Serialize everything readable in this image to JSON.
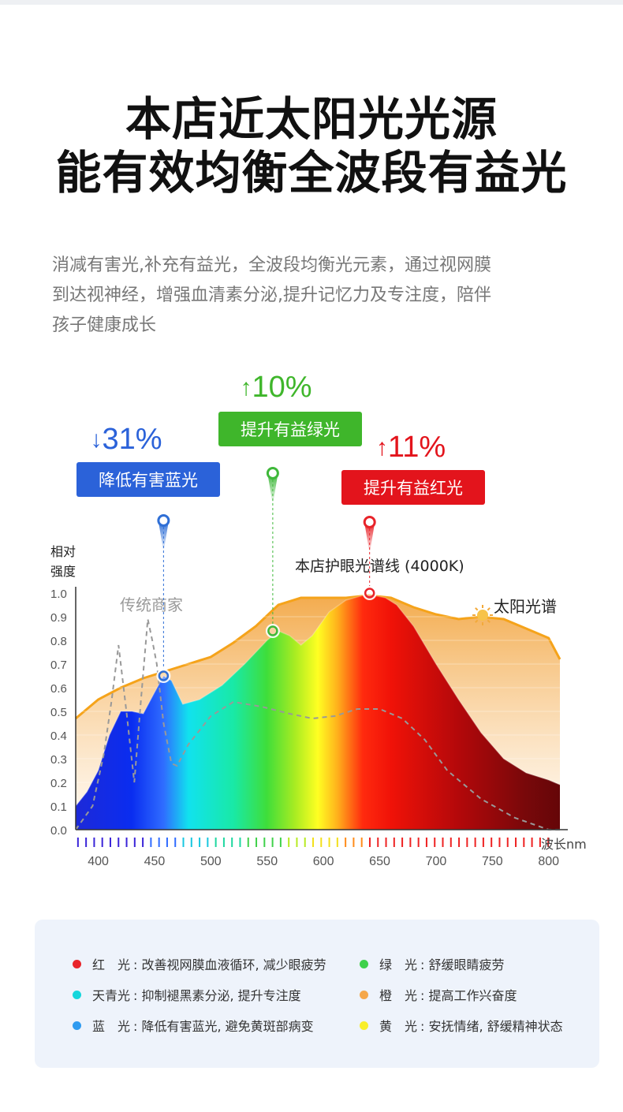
{
  "header": {
    "line1": "本店近太阳光光源",
    "line2": "能有效均衡全波段有益光"
  },
  "description": {
    "lines": [
      "消减有害光,补充有益光，全波段均衡光元素，通过视网膜",
      "到达视神经，增强血清素分泌,提升记忆力及专注度，陪伴",
      "孩子健康成长"
    ]
  },
  "chart_data": {
    "type": "area",
    "ylabel": "相对强度",
    "xlabel": "波长nm",
    "xlim": [
      380,
      810
    ],
    "ylim": [
      0,
      1.0
    ],
    "x_ticks": [
      400,
      450,
      500,
      550,
      600,
      650,
      700,
      750,
      800
    ],
    "y_ticks": [
      "0.0",
      "0.1",
      "0.2",
      "0.3",
      "0.4",
      "0.5",
      "0.6",
      "0.7",
      "0.8",
      "0.9",
      "1.0"
    ],
    "series": [
      {
        "name": "太阳光谱",
        "color": "#f5a31a",
        "x": [
          380,
          400,
          420,
          440,
          460,
          480,
          500,
          520,
          540,
          560,
          580,
          600,
          620,
          640,
          660,
          680,
          700,
          720,
          740,
          760,
          780,
          800,
          810
        ],
        "y": [
          0.47,
          0.55,
          0.6,
          0.64,
          0.67,
          0.7,
          0.73,
          0.79,
          0.86,
          0.95,
          0.98,
          0.98,
          0.98,
          0.99,
          0.98,
          0.94,
          0.91,
          0.89,
          0.9,
          0.89,
          0.85,
          0.81,
          0.72
        ]
      },
      {
        "name": "本店护眼光谱线 (4000K)",
        "x": [
          380,
          390,
          400,
          410,
          420,
          430,
          440,
          450,
          458,
          465,
          475,
          490,
          510,
          530,
          550,
          560,
          570,
          580,
          590,
          605,
          620,
          635,
          645,
          655,
          665,
          680,
          700,
          720,
          740,
          760,
          780,
          800,
          810
        ],
        "y": [
          0.1,
          0.16,
          0.25,
          0.4,
          0.5,
          0.5,
          0.49,
          0.58,
          0.65,
          0.63,
          0.53,
          0.55,
          0.61,
          0.7,
          0.8,
          0.84,
          0.82,
          0.78,
          0.82,
          0.92,
          0.97,
          0.99,
          0.99,
          0.98,
          0.95,
          0.86,
          0.7,
          0.55,
          0.41,
          0.3,
          0.24,
          0.21,
          0.19
        ]
      },
      {
        "name": "传统商家",
        "color": "#999999",
        "x": [
          380,
          395,
          405,
          412,
          418,
          425,
          432,
          438,
          444,
          448,
          452,
          458,
          465,
          470,
          480,
          500,
          520,
          545,
          570,
          590,
          610,
          630,
          650,
          670,
          690,
          710,
          740,
          770,
          800,
          810
        ],
        "y": [
          0.0,
          0.1,
          0.32,
          0.55,
          0.78,
          0.5,
          0.2,
          0.55,
          0.89,
          0.8,
          0.7,
          0.45,
          0.28,
          0.27,
          0.36,
          0.48,
          0.54,
          0.52,
          0.49,
          0.47,
          0.48,
          0.51,
          0.51,
          0.47,
          0.38,
          0.25,
          0.13,
          0.05,
          0.0,
          0.0
        ]
      }
    ],
    "markers": [
      {
        "x": 458,
        "y": 0.65,
        "color": "#2f6fd6"
      },
      {
        "x": 555,
        "y": 0.84,
        "color": "#3fb83a"
      },
      {
        "x": 641,
        "y": 1.0,
        "color": "#e8242a"
      }
    ],
    "annotations": [
      {
        "arrow": "↓",
        "value": "31%",
        "label": "降低有害蓝光",
        "color": "#2b62d9",
        "target_x": 458
      },
      {
        "arrow": "↑",
        "value": "10%",
        "label": "提升有益绿光",
        "color": "#3fb62b",
        "target_x": 555
      },
      {
        "arrow": "↑",
        "value": "11%",
        "label": "提升有益红光",
        "color": "#e3141c",
        "target_x": 641
      }
    ],
    "series_labels": {
      "traditional": "传统商家",
      "product": "本店护眼光谱线 (4000K)",
      "sun": "太阳光谱"
    },
    "ylabel_lines": [
      "相对",
      "强度"
    ]
  },
  "legend": {
    "items": [
      {
        "name": "红　光",
        "desc": ": 改善视网膜血液循环, 减少眼疲劳",
        "color": "#e8242a"
      },
      {
        "name": "绿　光",
        "desc": ": 舒缓眼睛疲劳",
        "color": "#3fd14a"
      },
      {
        "name": "天青光",
        "desc": ": 抑制褪黑素分泌, 提升专注度",
        "color": "#14d6dc"
      },
      {
        "name": "橙　光",
        "desc": ": 提高工作兴奋度",
        "color": "#f5a74a"
      },
      {
        "name": "蓝　光",
        "desc": ": 降低有害蓝光, 避免黄斑部病变",
        "color": "#2f9bf0"
      },
      {
        "name": "黄　光",
        "desc": ": 安抚情绪, 舒缓精神状态",
        "color": "#f8ee2a"
      }
    ]
  }
}
